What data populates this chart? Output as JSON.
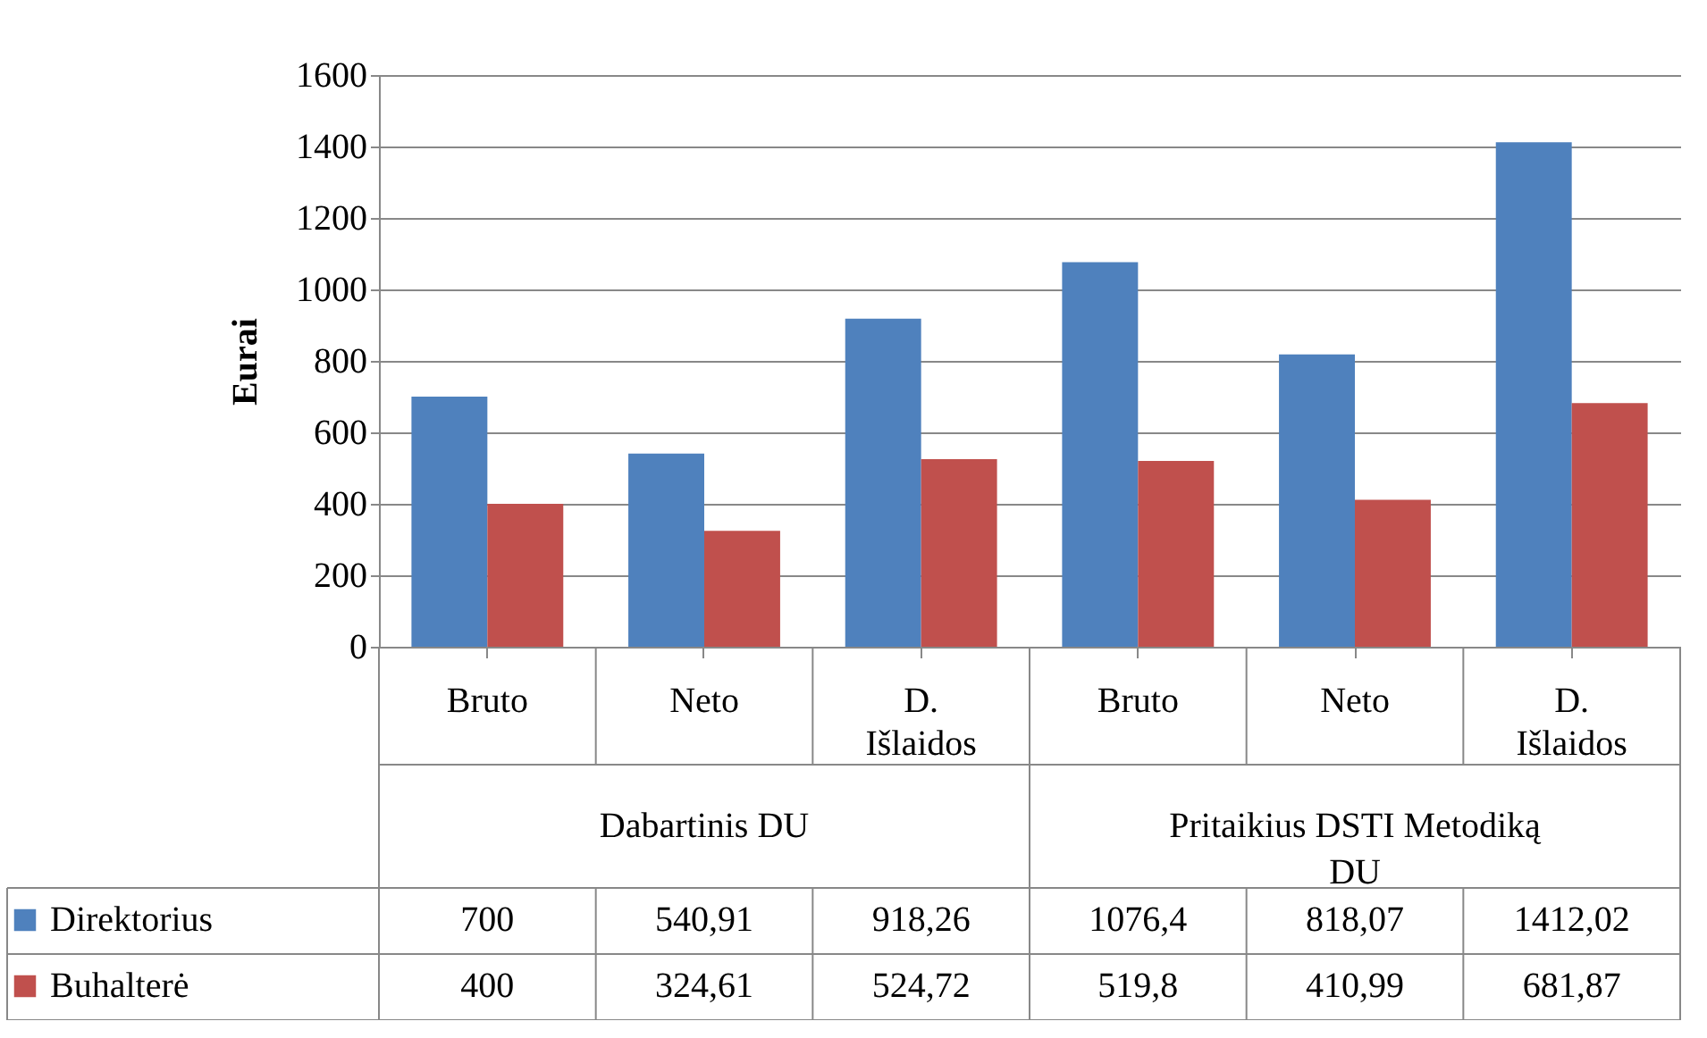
{
  "chart_data": {
    "type": "bar",
    "ylabel": "Eurai",
    "categories": [
      "Bruto",
      "Neto",
      "D. Išlaidos",
      "Bruto",
      "Neto",
      "D. Išlaidos"
    ],
    "annotations": [
      "Dabartinis DU",
      "Pritaikius DSTI Metodiką DU"
    ],
    "series": [
      {
        "name": "Direktorius",
        "color": "#4f81bd",
        "values": [
          700,
          540.91,
          918.26,
          1076.4,
          818.07,
          1412.02
        ],
        "value_labels": [
          "700",
          "540,91",
          "918,26",
          "1076,4",
          "818,07",
          "1412,02"
        ]
      },
      {
        "name": "Buhalterė",
        "color": "#c0504d",
        "values": [
          400,
          324.61,
          524.72,
          519.8,
          410.99,
          681.87
        ],
        "value_labels": [
          "400",
          "324,61",
          "524,72",
          "519,8",
          "410,99",
          "681,87"
        ]
      }
    ],
    "ylim": [
      0,
      1600
    ],
    "yticks": [
      0,
      200,
      400,
      600,
      800,
      1000,
      1200,
      1400,
      1600
    ],
    "grid": "y",
    "legend": "bottom left"
  }
}
